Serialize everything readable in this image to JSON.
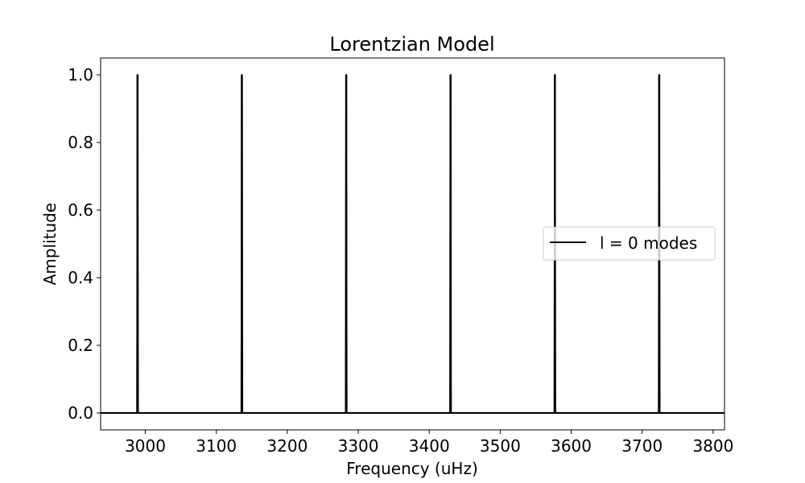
{
  "chart_data": {
    "type": "line",
    "title": "Lorentzian Model",
    "xlabel": "Frequency (uHz)",
    "ylabel": "Amplitude",
    "xlim": [
      2937,
      3816
    ],
    "ylim": [
      -0.05,
      1.05
    ],
    "xticks": [
      3000,
      3100,
      3200,
      3300,
      3400,
      3500,
      3600,
      3700,
      3800
    ],
    "yticks": [
      0.0,
      0.2,
      0.4,
      0.6,
      0.8,
      1.0
    ],
    "xtick_labels": [
      "3000",
      "3100",
      "3200",
      "3300",
      "3400",
      "3500",
      "3600",
      "3700",
      "3800"
    ],
    "ytick_labels": [
      "0.0",
      "0.2",
      "0.4",
      "0.6",
      "0.8",
      "1.0"
    ],
    "grid": false,
    "legend": {
      "position": "center-right",
      "entries": [
        "l = 0 modes"
      ]
    },
    "series": [
      {
        "name": "l = 0 modes",
        "color": "#000000",
        "baseline": 0.0,
        "peak_amplitude": 1.0,
        "peak_frequencies": [
          2989,
          3136,
          3283,
          3430,
          3577,
          3724
        ],
        "x_start": 2937,
        "x_end": 3816
      }
    ]
  }
}
